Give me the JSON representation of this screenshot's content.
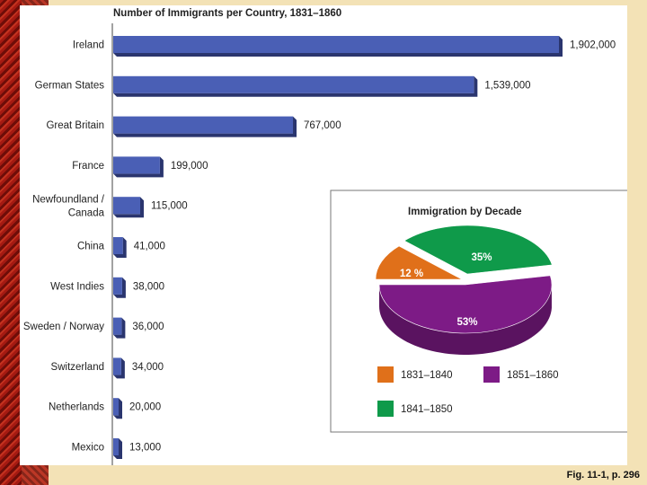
{
  "caption": "Fig. 11-1, p. 296",
  "chart_data": [
    {
      "type": "bar",
      "orientation": "horizontal",
      "title": "Number of Immigrants per Country, 1831–1860",
      "categories": [
        "Ireland",
        "German States",
        "Great Britain",
        "France",
        "Newfoundland / Canada",
        "China",
        "West Indies",
        "Sweden / Norway",
        "Switzerland",
        "Netherlands",
        "Mexico"
      ],
      "values": [
        1902000,
        1539000,
        767000,
        199000,
        115000,
        41000,
        38000,
        36000,
        34000,
        20000,
        13000
      ],
      "value_labels": [
        "1,902,000",
        "1,539,000",
        "767,000",
        "199,000",
        "115,000",
        "41,000",
        "38,000",
        "36,000",
        "34,000",
        "20,000",
        "13,000"
      ],
      "xlim": [
        0,
        1902000
      ],
      "color": "#4a5fb5"
    },
    {
      "type": "pie",
      "title": "Immigration by Decade",
      "labels": [
        "1831–1840",
        "1841–1850",
        "1851–1860"
      ],
      "values": [
        12,
        35,
        53
      ],
      "value_labels": [
        "12 %",
        "35%",
        "53%"
      ],
      "colors": [
        "#e0701a",
        "#0f9a4a",
        "#7d1b86"
      ]
    }
  ]
}
